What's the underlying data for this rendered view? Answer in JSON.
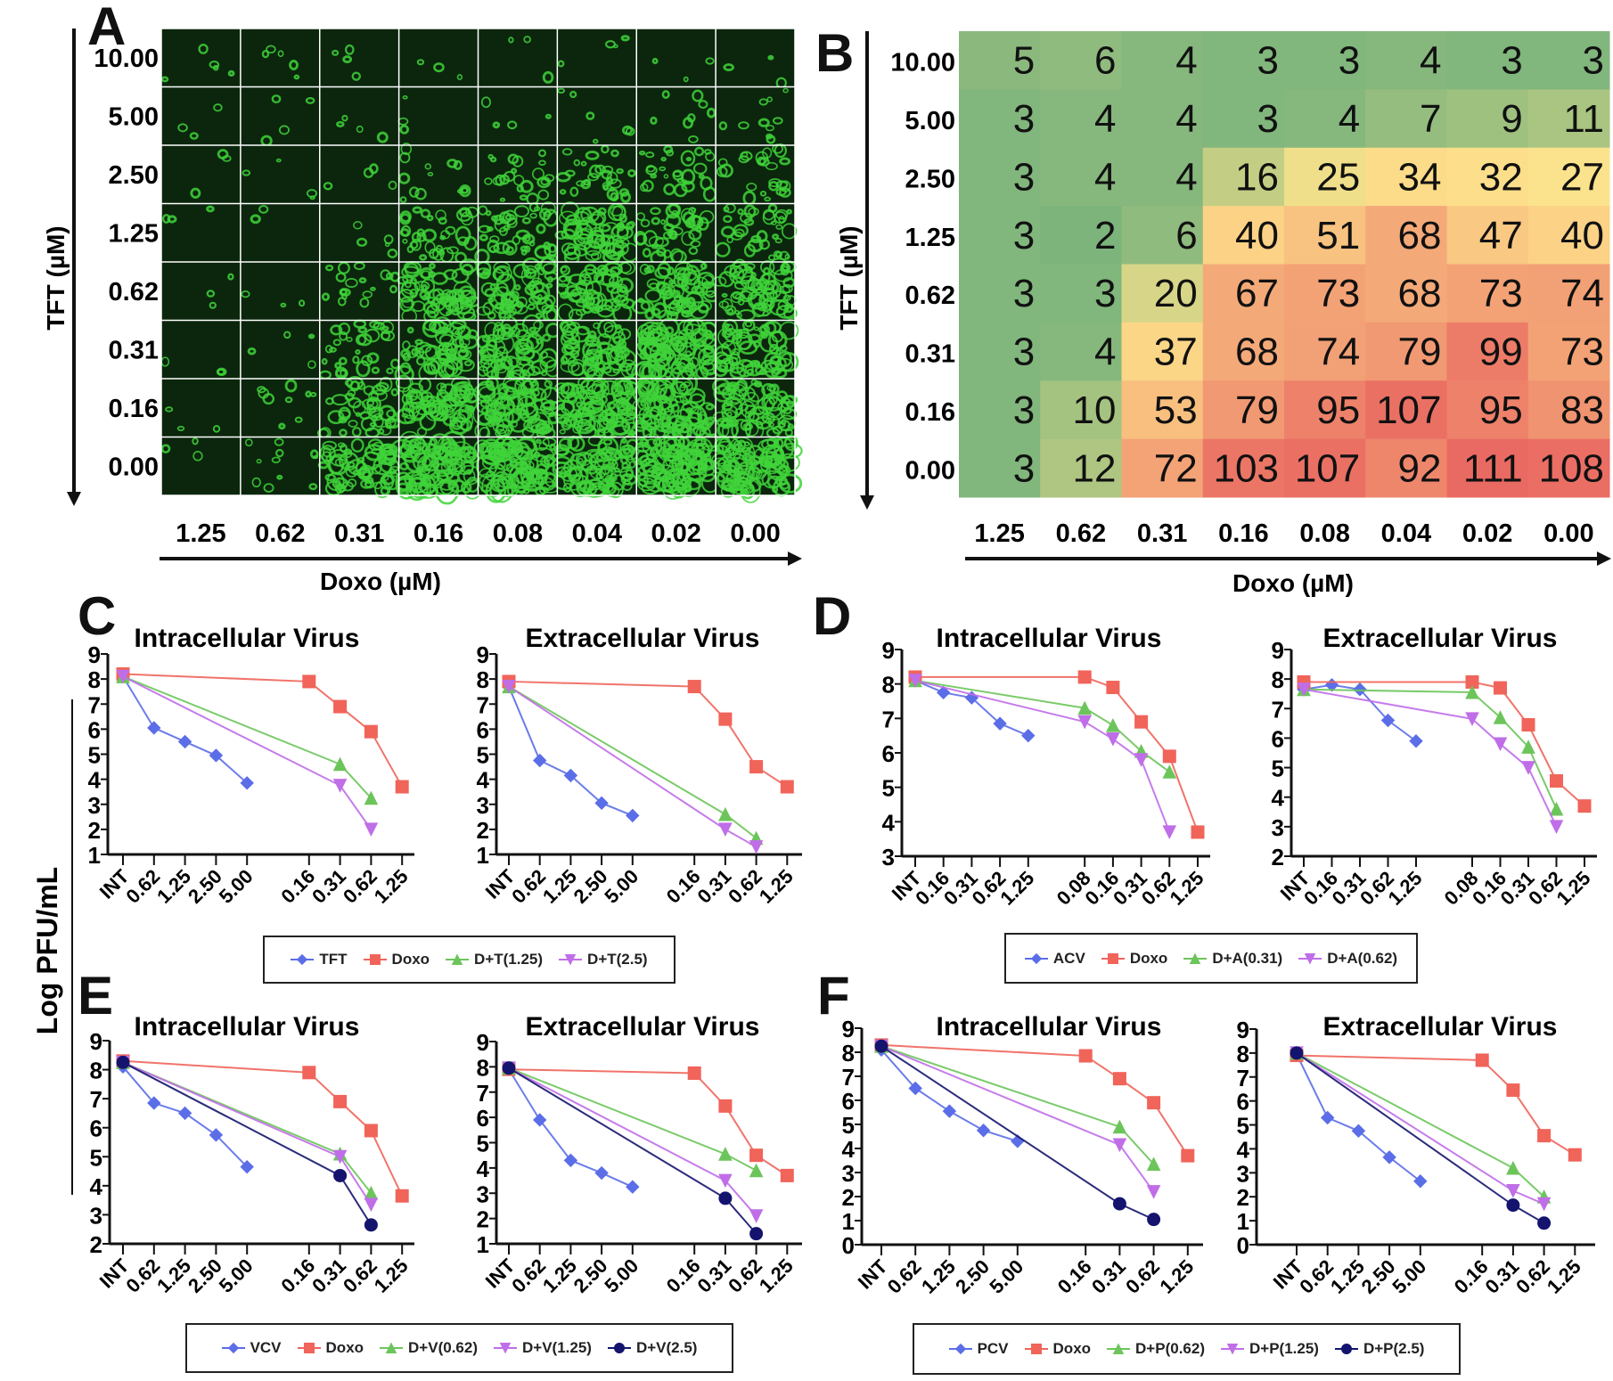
{
  "figure": {
    "panel_letters": {
      "A": "A",
      "B": "B",
      "C": "C",
      "D": "D",
      "E": "E",
      "F": "F"
    },
    "shared_ylabel": "Log PFU/mL"
  },
  "panel_a": {
    "ylabel": "TFT (µM)",
    "xlabel": "Doxo (µM)",
    "y_labels": [
      "10.00",
      "5.00",
      "2.50",
      "1.25",
      "0.62",
      "0.31",
      "0.16",
      "0.00"
    ],
    "x_labels": [
      "1.25",
      "0.62",
      "0.31",
      "0.16",
      "0.08",
      "0.04",
      "0.02",
      "0.00"
    ]
  },
  "colors": {
    "TFT_like": "#5b6ee8",
    "Doxo": "#f0645a",
    "low_combo": "#6cc55a",
    "mid_combo": "#c06ee8",
    "high_combo": "#14146e"
  },
  "chart_data": [
    {
      "type": "heatmap",
      "panel": "B",
      "xlabel": "Doxo (µM)",
      "ylabel": "TFT (µM)",
      "x_labels": [
        "1.25",
        "0.62",
        "0.31",
        "0.16",
        "0.08",
        "0.04",
        "0.02",
        "0.00"
      ],
      "y_labels": [
        "10.00",
        "5.00",
        "2.50",
        "1.25",
        "0.62",
        "0.31",
        "0.16",
        "0.00"
      ],
      "values": [
        [
          5,
          6,
          4,
          3,
          3,
          4,
          3,
          3
        ],
        [
          3,
          4,
          4,
          3,
          4,
          7,
          9,
          11
        ],
        [
          3,
          4,
          4,
          16,
          25,
          34,
          32,
          27
        ],
        [
          3,
          2,
          6,
          40,
          51,
          68,
          47,
          40
        ],
        [
          3,
          3,
          20,
          67,
          73,
          68,
          73,
          74
        ],
        [
          3,
          4,
          37,
          68,
          74,
          79,
          99,
          73
        ],
        [
          3,
          10,
          53,
          79,
          95,
          107,
          95,
          83
        ],
        [
          3,
          12,
          72,
          103,
          107,
          92,
          111,
          108
        ]
      ],
      "colorscale": [
        "#72b07a",
        "#fee48c",
        "#e96a62"
      ]
    },
    {
      "type": "line",
      "panel": "C",
      "title": "Intracellular Virus",
      "ylim": [
        1,
        9
      ],
      "groups": [
        [
          "INT",
          "0.62",
          "1.25",
          "2.50",
          "5.00"
        ],
        [
          "0.16",
          "0.31",
          "0.62",
          "1.25"
        ]
      ],
      "series": [
        {
          "name": "TFT",
          "marker": "diamond",
          "color": "#5b6ee8",
          "values": [
            8.1,
            6.05,
            5.5,
            4.95,
            3.85,
            null,
            null,
            null,
            null
          ]
        },
        {
          "name": "Doxo",
          "marker": "square",
          "color": "#f0645a",
          "values": [
            8.2,
            null,
            null,
            null,
            null,
            7.9,
            6.9,
            5.9,
            3.7
          ]
        },
        {
          "name": "D+T(1.25)",
          "marker": "triangle-up",
          "color": "#6cc55a",
          "values": [
            8.1,
            null,
            null,
            null,
            null,
            null,
            4.6,
            3.25,
            null
          ]
        },
        {
          "name": "D+T(2.5)",
          "marker": "triangle-down",
          "color": "#c06ee8",
          "values": [
            8.1,
            null,
            null,
            null,
            null,
            null,
            3.75,
            2.0,
            null
          ]
        }
      ]
    },
    {
      "type": "line",
      "panel": "C",
      "title": "Extracellular Virus",
      "ylim": [
        1,
        9
      ],
      "groups": [
        [
          "INT",
          "0.62",
          "1.25",
          "2.50",
          "5.00"
        ],
        [
          "0.16",
          "0.31",
          "0.62",
          "1.25"
        ]
      ],
      "series": [
        {
          "name": "TFT",
          "marker": "diamond",
          "color": "#5b6ee8",
          "values": [
            7.7,
            4.75,
            4.15,
            3.05,
            2.55,
            null,
            null,
            null,
            null
          ]
        },
        {
          "name": "Doxo",
          "marker": "square",
          "color": "#f0645a",
          "values": [
            7.9,
            null,
            null,
            null,
            null,
            7.7,
            6.4,
            4.5,
            3.7
          ]
        },
        {
          "name": "D+T(1.25)",
          "marker": "triangle-up",
          "color": "#6cc55a",
          "values": [
            7.7,
            null,
            null,
            null,
            null,
            null,
            2.6,
            1.65,
            null
          ]
        },
        {
          "name": "D+T(2.5)",
          "marker": "triangle-down",
          "color": "#c06ee8",
          "values": [
            7.7,
            null,
            null,
            null,
            null,
            null,
            2.0,
            1.3,
            null
          ]
        }
      ]
    },
    {
      "type": "line",
      "panel": "D",
      "title": "Intracellular Virus",
      "ylim": [
        3,
        9
      ],
      "groups": [
        [
          "INT",
          "0.16",
          "0.31",
          "0.62",
          "1.25"
        ],
        [
          "0.08",
          "0.16",
          "0.31",
          "0.62",
          "1.25"
        ]
      ],
      "series": [
        {
          "name": "ACV",
          "marker": "diamond",
          "color": "#5b6ee8",
          "values": [
            8.1,
            7.75,
            7.6,
            6.85,
            6.5,
            null,
            null,
            null,
            null,
            null
          ]
        },
        {
          "name": "Doxo",
          "marker": "square",
          "color": "#f0645a",
          "values": [
            8.2,
            null,
            null,
            null,
            null,
            8.2,
            7.9,
            6.9,
            5.9,
            3.7
          ]
        },
        {
          "name": "D+A(0.31)",
          "marker": "triangle-up",
          "color": "#6cc55a",
          "values": [
            8.1,
            null,
            null,
            null,
            null,
            7.3,
            6.8,
            6.05,
            5.45,
            null
          ]
        },
        {
          "name": "D+A(0.62)",
          "marker": "triangle-down",
          "color": "#c06ee8",
          "values": [
            8.1,
            null,
            null,
            null,
            null,
            6.9,
            6.4,
            5.8,
            3.7,
            null
          ]
        }
      ]
    },
    {
      "type": "line",
      "panel": "D",
      "title": "Extracellular Virus",
      "ylim": [
        2,
        9
      ],
      "groups": [
        [
          "INT",
          "0.16",
          "0.31",
          "0.62",
          "1.25"
        ],
        [
          "0.08",
          "0.16",
          "0.31",
          "0.62",
          "1.25"
        ]
      ],
      "series": [
        {
          "name": "ACV",
          "marker": "diamond",
          "color": "#5b6ee8",
          "values": [
            7.65,
            7.8,
            7.65,
            6.6,
            5.9,
            null,
            null,
            null,
            null,
            null
          ]
        },
        {
          "name": "Doxo",
          "marker": "square",
          "color": "#f0645a",
          "values": [
            7.9,
            null,
            null,
            null,
            null,
            7.9,
            7.7,
            6.45,
            4.55,
            3.7
          ]
        },
        {
          "name": "D+A(0.31)",
          "marker": "triangle-up",
          "color": "#6cc55a",
          "values": [
            7.65,
            null,
            null,
            null,
            null,
            7.55,
            6.7,
            5.7,
            3.6,
            null
          ]
        },
        {
          "name": "D+A(0.62)",
          "marker": "triangle-down",
          "color": "#c06ee8",
          "values": [
            7.65,
            null,
            null,
            null,
            null,
            6.65,
            5.8,
            5.0,
            3.0,
            null
          ]
        }
      ]
    },
    {
      "type": "line",
      "panel": "E",
      "title": "Intracellular Virus",
      "ylim": [
        2,
        9
      ],
      "groups": [
        [
          "INT",
          "0.62",
          "1.25",
          "2.50",
          "5.00"
        ],
        [
          "0.16",
          "0.31",
          "0.62",
          "1.25"
        ]
      ],
      "series": [
        {
          "name": "VCV",
          "marker": "diamond",
          "color": "#5b6ee8",
          "values": [
            8.1,
            6.85,
            6.5,
            5.75,
            4.65,
            null,
            null,
            null,
            null
          ]
        },
        {
          "name": "Doxo",
          "marker": "square",
          "color": "#f0645a",
          "values": [
            8.3,
            null,
            null,
            null,
            null,
            7.9,
            6.9,
            5.9,
            3.65
          ]
        },
        {
          "name": "D+V(0.62)",
          "marker": "triangle-up",
          "color": "#6cc55a",
          "values": [
            8.25,
            null,
            null,
            null,
            null,
            null,
            5.1,
            3.75,
            null
          ]
        },
        {
          "name": "D+V(1.25)",
          "marker": "triangle-down",
          "color": "#c06ee8",
          "values": [
            8.25,
            null,
            null,
            null,
            null,
            null,
            5.0,
            3.35,
            null
          ]
        },
        {
          "name": "D+V(2.5)",
          "marker": "circle",
          "color": "#14146e",
          "values": [
            8.25,
            null,
            null,
            null,
            null,
            null,
            4.35,
            2.65,
            null
          ]
        }
      ]
    },
    {
      "type": "line",
      "panel": "E",
      "title": "Extracellular Virus",
      "ylim": [
        1,
        9
      ],
      "groups": [
        [
          "INT",
          "0.62",
          "1.25",
          "2.50",
          "5.00"
        ],
        [
          "0.16",
          "0.31",
          "0.62",
          "1.25"
        ]
      ],
      "series": [
        {
          "name": "VCV",
          "marker": "diamond",
          "color": "#5b6ee8",
          "values": [
            7.9,
            5.9,
            4.3,
            3.8,
            3.25,
            null,
            null,
            null,
            null
          ]
        },
        {
          "name": "Doxo",
          "marker": "square",
          "color": "#f0645a",
          "values": [
            7.9,
            null,
            null,
            null,
            null,
            7.75,
            6.45,
            4.5,
            3.7
          ]
        },
        {
          "name": "D+V(0.62)",
          "marker": "triangle-up",
          "color": "#6cc55a",
          "values": [
            7.95,
            null,
            null,
            null,
            null,
            null,
            4.55,
            3.9,
            null
          ]
        },
        {
          "name": "D+V(1.25)",
          "marker": "triangle-down",
          "color": "#c06ee8",
          "values": [
            7.95,
            null,
            null,
            null,
            null,
            null,
            3.5,
            2.1,
            null
          ]
        },
        {
          "name": "D+V(2.5)",
          "marker": "circle",
          "color": "#14146e",
          "values": [
            7.95,
            null,
            null,
            null,
            null,
            null,
            2.8,
            1.4,
            null
          ]
        }
      ]
    },
    {
      "type": "line",
      "panel": "F",
      "title": "Intracellular Virus",
      "ylim": [
        0,
        9
      ],
      "groups": [
        [
          "INT",
          "0.62",
          "1.25",
          "2.50",
          "5.00"
        ],
        [
          "0.16",
          "0.31",
          "0.62",
          "1.25"
        ]
      ],
      "series": [
        {
          "name": "PCV",
          "marker": "diamond",
          "color": "#5b6ee8",
          "values": [
            8.1,
            6.5,
            5.55,
            4.75,
            4.3,
            null,
            null,
            null,
            null
          ]
        },
        {
          "name": "Doxo",
          "marker": "square",
          "color": "#f0645a",
          "values": [
            8.3,
            null,
            null,
            null,
            null,
            7.85,
            6.9,
            5.9,
            3.7
          ]
        },
        {
          "name": "D+P(0.62)",
          "marker": "triangle-up",
          "color": "#6cc55a",
          "values": [
            8.25,
            null,
            null,
            null,
            null,
            null,
            4.9,
            3.35,
            null
          ]
        },
        {
          "name": "D+P(1.25)",
          "marker": "triangle-down",
          "color": "#c06ee8",
          "values": [
            8.25,
            null,
            null,
            null,
            null,
            null,
            4.15,
            2.2,
            null
          ]
        },
        {
          "name": "D+P(2.5)",
          "marker": "circle",
          "color": "#14146e",
          "values": [
            8.25,
            null,
            null,
            null,
            null,
            null,
            1.7,
            1.05,
            null
          ]
        }
      ]
    },
    {
      "type": "line",
      "panel": "F",
      "title": "Extracellular Virus",
      "ylim": [
        0,
        9
      ],
      "groups": [
        [
          "INT",
          "0.62",
          "1.25",
          "2.50",
          "5.00"
        ],
        [
          "0.16",
          "0.31",
          "0.62",
          "1.25"
        ]
      ],
      "series": [
        {
          "name": "PCV",
          "marker": "diamond",
          "color": "#5b6ee8",
          "values": [
            7.95,
            5.3,
            4.75,
            3.65,
            2.65,
            null,
            null,
            null,
            null
          ]
        },
        {
          "name": "Doxo",
          "marker": "square",
          "color": "#f0645a",
          "values": [
            7.9,
            null,
            null,
            null,
            null,
            7.7,
            6.45,
            4.55,
            3.75
          ]
        },
        {
          "name": "D+P(0.62)",
          "marker": "triangle-up",
          "color": "#6cc55a",
          "values": [
            8.0,
            null,
            null,
            null,
            null,
            null,
            3.2,
            2.0,
            null
          ]
        },
        {
          "name": "D+P(1.25)",
          "marker": "triangle-down",
          "color": "#c06ee8",
          "values": [
            8.0,
            null,
            null,
            null,
            null,
            null,
            2.25,
            1.7,
            null
          ]
        },
        {
          "name": "D+P(2.5)",
          "marker": "circle",
          "color": "#14146e",
          "values": [
            8.0,
            null,
            null,
            null,
            null,
            null,
            1.65,
            0.9,
            null
          ]
        }
      ]
    }
  ]
}
